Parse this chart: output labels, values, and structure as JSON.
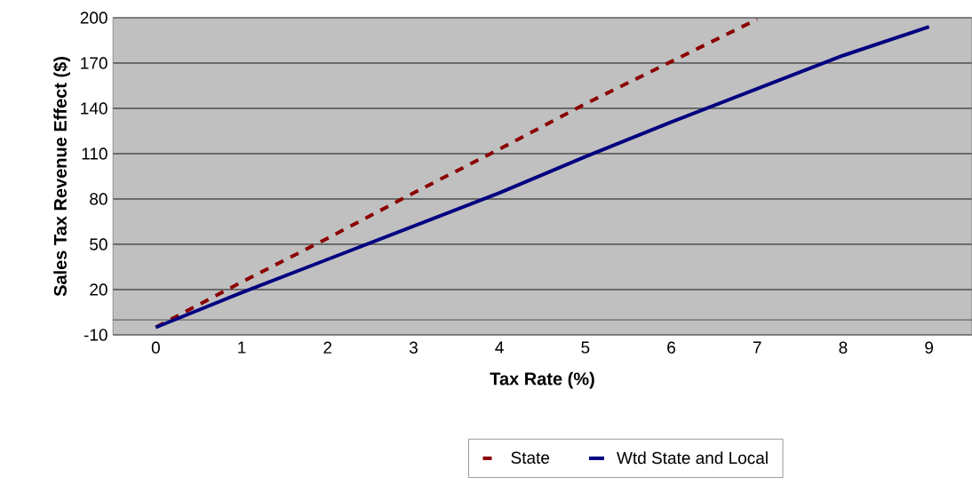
{
  "chart_data": {
    "type": "line",
    "xlabel": "Tax Rate (%)",
    "ylabel": "Sales Tax Revenue Effect ($)",
    "categories": [
      "0",
      "1",
      "2",
      "3",
      "4",
      "5",
      "6",
      "7",
      "8",
      "9"
    ],
    "series": [
      {
        "name": "State",
        "color": "#8b0000",
        "line_style": "dashed",
        "values": [
          -5,
          25,
          54,
          84,
          113,
          143,
          171,
          199,
          null,
          null
        ]
      },
      {
        "name": "Wtd State and Local",
        "color": "#000080",
        "line_style": "solid",
        "values": [
          -5,
          18,
          40,
          62,
          84,
          108,
          131,
          153,
          175,
          194
        ]
      }
    ],
    "ylim": [
      -10,
      200
    ],
    "yticks": [
      -10,
      20,
      50,
      80,
      110,
      140,
      170,
      200
    ],
    "grid": "y",
    "legend": "bottom",
    "marker": "none",
    "ref_lines": [
      {
        "axis": "y",
        "value": 0,
        "color": "#404040"
      }
    ]
  }
}
